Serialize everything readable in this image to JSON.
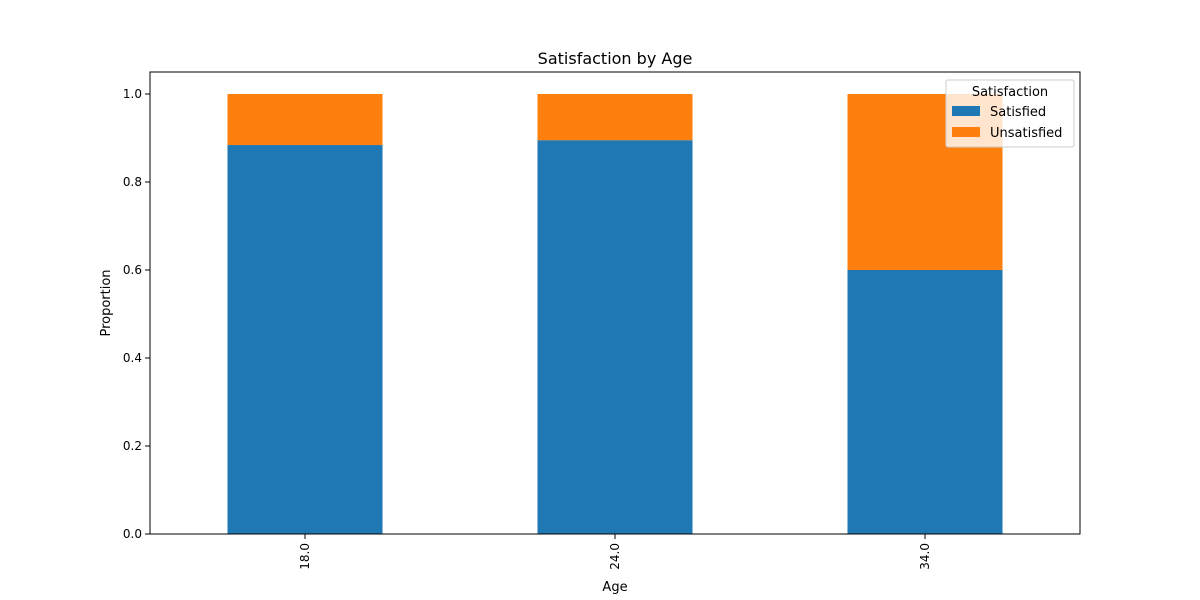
{
  "chart_data": {
    "type": "bar",
    "stacked": true,
    "title": "Satisfaction by Age",
    "xlabel": "Age",
    "ylabel": "Proportion",
    "categories": [
      "18.0",
      "24.0",
      "34.0"
    ],
    "series": [
      {
        "name": "Satisfied",
        "color": "#1f77b4",
        "values": [
          0.884,
          0.895,
          0.6
        ]
      },
      {
        "name": "Unsatisfied",
        "color": "#ff7f0e",
        "values": [
          0.116,
          0.105,
          0.4
        ]
      }
    ],
    "ylim": [
      0,
      1.05
    ],
    "yticks": [
      "0.0",
      "0.2",
      "0.4",
      "0.6",
      "0.8",
      "1.0"
    ],
    "legend": {
      "title": "Satisfaction",
      "placement": "top-right"
    },
    "grid": false
  }
}
